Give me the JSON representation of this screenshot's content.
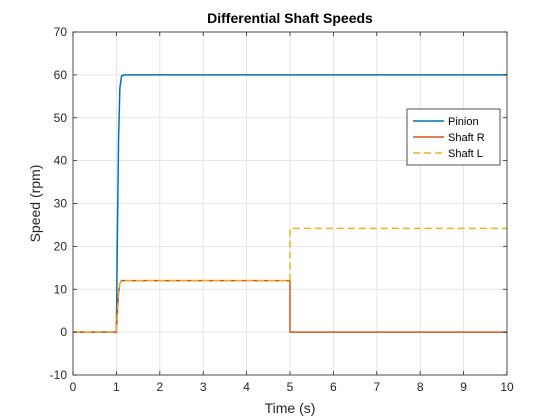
{
  "chart_data": {
    "type": "line",
    "title": "Differential Shaft Speeds",
    "xlabel": "Time (s)",
    "ylabel": "Speed (rpm)",
    "xlim": [
      0,
      10
    ],
    "ylim": [
      -10,
      70
    ],
    "xticks": [
      0,
      1,
      2,
      3,
      4,
      5,
      6,
      7,
      8,
      9,
      10
    ],
    "yticks": [
      -10,
      0,
      10,
      20,
      30,
      40,
      50,
      60,
      70
    ],
    "grid": true,
    "legend_position": "top-right",
    "series": [
      {
        "name": "Pinion",
        "color": "#0072BD",
        "style": "solid",
        "x": [
          0,
          1.0,
          1.02,
          1.05,
          1.08,
          1.12,
          1.2,
          10
        ],
        "y": [
          0,
          0,
          20,
          45,
          57,
          59.8,
          60,
          60
        ]
      },
      {
        "name": "Shaft R",
        "color": "#D95319",
        "style": "solid",
        "x": [
          0,
          1.0,
          1.02,
          1.05,
          1.08,
          1.12,
          1.2,
          5.0,
          5.0,
          10
        ],
        "y": [
          0,
          0,
          4,
          9,
          11.4,
          12,
          12,
          12,
          0,
          0
        ]
      },
      {
        "name": "Shaft L",
        "color": "#EDB120",
        "style": "dashed",
        "x": [
          0,
          1.0,
          1.02,
          1.05,
          1.08,
          1.12,
          1.2,
          5.0,
          5.0,
          10
        ],
        "y": [
          0,
          0,
          4,
          9,
          11.4,
          12,
          12,
          12,
          24.2,
          24.2
        ]
      }
    ]
  }
}
